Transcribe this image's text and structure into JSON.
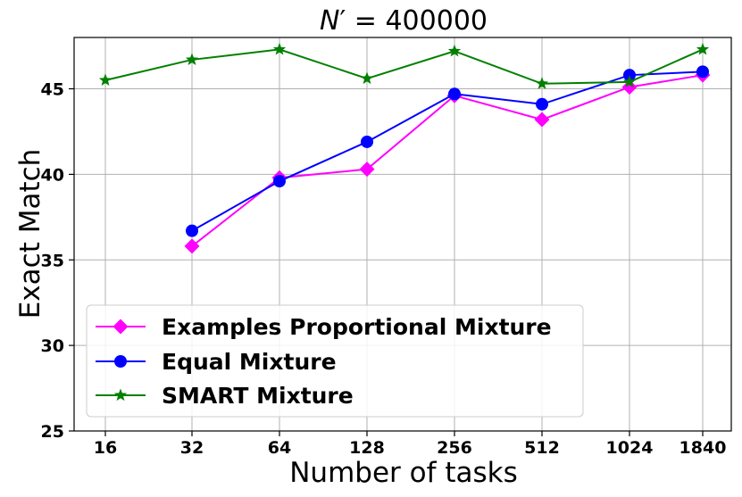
{
  "chart_data": {
    "type": "line",
    "title": {
      "prefix": "N",
      "prime": "′",
      "suffix": " = 400000"
    },
    "xlabel": "Number of tasks",
    "ylabel": "Exact Match",
    "categories": [
      "16",
      "32",
      "64",
      "128",
      "256",
      "512",
      "1024",
      "1840"
    ],
    "ylim": [
      25,
      48
    ],
    "yticks": [
      25,
      30,
      35,
      40,
      45
    ],
    "grid": true,
    "legend_position": "lower-left",
    "series": [
      {
        "name": "Examples Proportional Mixture",
        "color": "#ff00ff",
        "marker": "diamond",
        "values": [
          null,
          35.8,
          39.8,
          40.3,
          44.6,
          43.2,
          45.1,
          45.8
        ]
      },
      {
        "name": "Equal Mixture",
        "color": "#0000ff",
        "marker": "circle",
        "values": [
          null,
          36.7,
          39.6,
          41.9,
          44.7,
          44.1,
          45.8,
          46.0
        ]
      },
      {
        "name": "SMART Mixture",
        "color": "#008000",
        "marker": "star",
        "values": [
          45.5,
          46.7,
          47.3,
          45.6,
          47.2,
          45.3,
          45.4,
          47.3
        ]
      }
    ]
  }
}
